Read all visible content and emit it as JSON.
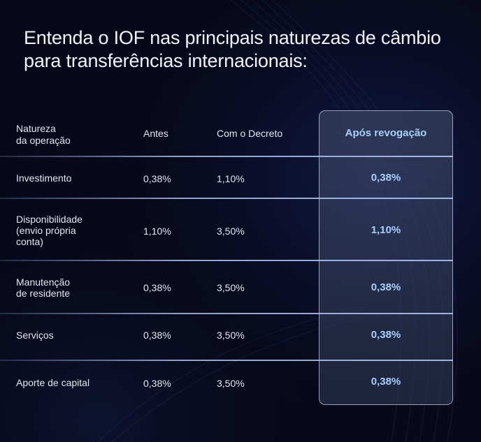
{
  "title": "Entenda o IOF nas principais naturezas de câmbio para transferências internacionais:",
  "table": {
    "headers": {
      "natureza_line1": "Natureza",
      "natureza_line2": "da operação",
      "antes": "Antes",
      "decreto": "Com o Decreto",
      "apos": "Após revogação"
    },
    "rows": [
      {
        "natureza": [
          "Investimento"
        ],
        "antes": "0,38%",
        "decreto": "1,10%",
        "apos": "0,38%"
      },
      {
        "natureza": [
          "Disponibilidade",
          "(envio própria",
          "conta)"
        ],
        "antes": "1,10%",
        "decreto": "3,50%",
        "apos": "1,10%"
      },
      {
        "natureza": [
          "Manutenção",
          "de residente"
        ],
        "antes": "0,38%",
        "decreto": "3,50%",
        "apos": "0,38%"
      },
      {
        "natureza": [
          "Serviços"
        ],
        "antes": "0,38%",
        "decreto": "3,50%",
        "apos": "0,38%"
      },
      {
        "natureza": [
          "Aporte de capital"
        ],
        "antes": "0,38%",
        "decreto": "3,50%",
        "apos": "0,38%"
      }
    ]
  },
  "colors": {
    "background": "#07091a",
    "accent_text": "#a8cffb",
    "panel_border": "#bec8e1"
  }
}
